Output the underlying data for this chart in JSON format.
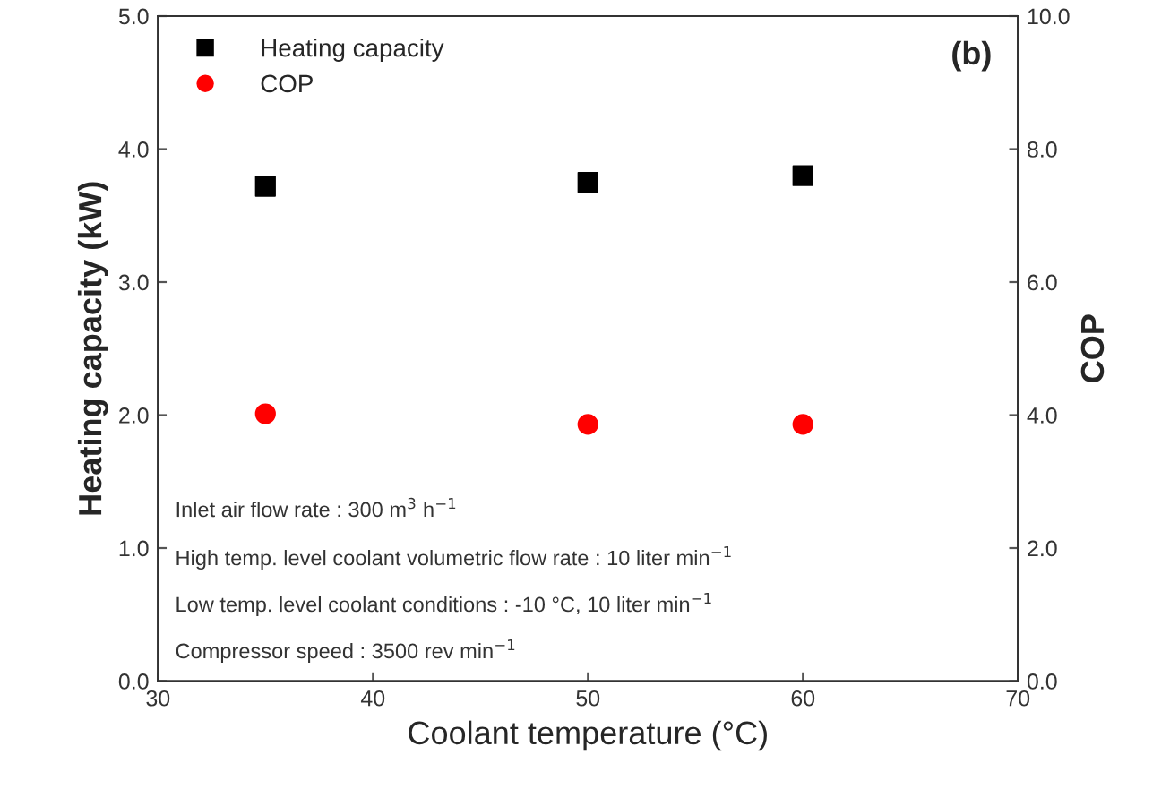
{
  "chart_data": {
    "type": "scatter",
    "xlabel": "Coolant temperature (°C)",
    "ylabel": "Heating capacity (kW)",
    "y2label": "COP",
    "x": [
      35,
      50,
      60
    ],
    "series": [
      {
        "name": "Heating capacity",
        "color": "#000000",
        "marker": "square",
        "values": [
          3.72,
          3.75,
          3.8
        ]
      },
      {
        "name": "COP",
        "color": "#ff0000",
        "marker": "circle",
        "axis": "y2",
        "values": [
          4.02,
          3.86,
          3.86
        ]
      }
    ],
    "xlim": [
      30,
      70
    ],
    "xticks": [
      30,
      40,
      50,
      60,
      70
    ],
    "ylim": [
      0,
      5
    ],
    "yticks": [
      {
        "value": 0,
        "label": "0.0"
      },
      {
        "value": 1,
        "label": "1.0"
      },
      {
        "value": 2,
        "label": "2.0"
      },
      {
        "value": 3,
        "label": "3.0"
      },
      {
        "value": 4,
        "label": "4.0"
      },
      {
        "value": 5,
        "label": "5.0"
      }
    ],
    "y2lim": [
      0,
      10
    ],
    "y2ticks": [
      {
        "value": 0,
        "label": "0.0"
      },
      {
        "value": 2,
        "label": "2.0"
      },
      {
        "value": 4,
        "label": "4.0"
      },
      {
        "value": 6,
        "label": "6.0"
      },
      {
        "value": 8,
        "label": "8.0"
      },
      {
        "value": 10,
        "label": "10.0"
      }
    ],
    "legend": "top left",
    "grid": false,
    "annotations": [
      "(b)",
      "Inlet air flow rate : 300 m$^{3}$ h$^{−1}$",
      "High temp. level coolant volumetric flow rate : 10 liter min$^{−1}$",
      "Low temp. level coolant conditions : -10 °C, 10 liter min$^{−1}$",
      "Compressor speed : 3500 rev min$^{−1}$"
    ]
  }
}
